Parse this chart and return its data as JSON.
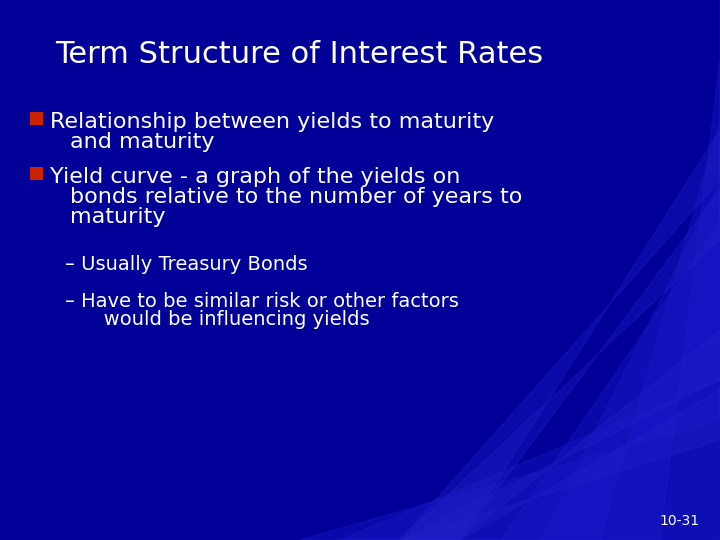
{
  "title": "Term Structure of Interest Rates",
  "background_color": "#000099",
  "title_color": "#FFFFFF",
  "title_fontsize": 22,
  "bullet_color": "#FFFFFF",
  "bullet_fontsize": 16,
  "sub_bullet_fontsize": 14,
  "page_number": "10-31",
  "bullet_marker_color": "#CC2200",
  "bullet1_line1": "Relationship between yields to maturity",
  "bullet1_line2": "and maturity",
  "bullet2_line1": "Yield curve - a graph of the yields on",
  "bullet2_line2": "bonds relative to the number of years to",
  "bullet2_line3": "maturity",
  "sub1": "– Usually Treasury Bonds",
  "sub2_line1": "– Have to be similar risk or other factors",
  "sub2_line2": "   would be influencing yields"
}
